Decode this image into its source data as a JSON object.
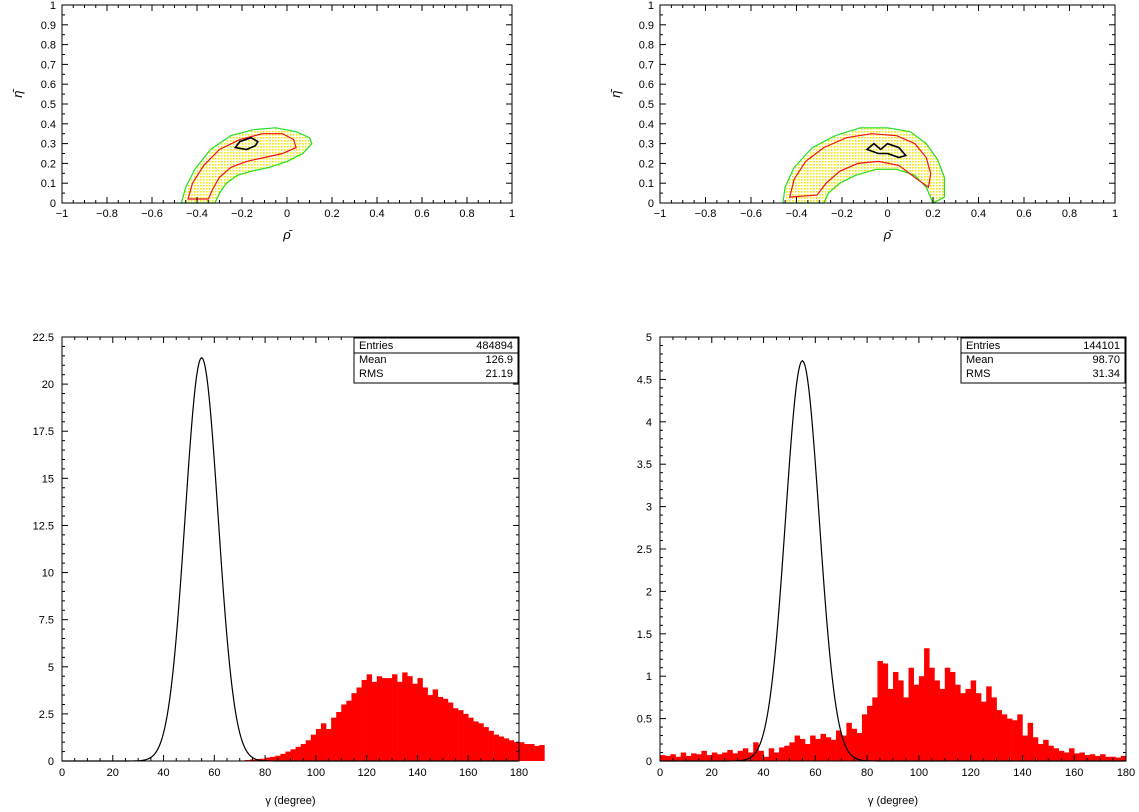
{
  "chart_data": [
    {
      "type": "heatmap",
      "xlabel": "ρ̄",
      "ylabel": "η̄",
      "xlim": [
        -1,
        1
      ],
      "ylim": [
        0,
        1
      ],
      "xticks": [
        "−1",
        "−0.8",
        "−0.6",
        "−0.4",
        "−0.2",
        "0",
        "0.2",
        "0.4",
        "0.6",
        "0.8",
        "1"
      ],
      "yticks": [
        "0",
        "0.1",
        "0.2",
        "0.3",
        "0.4",
        "0.5",
        "0.6",
        "0.7",
        "0.8",
        "0.9",
        "1"
      ],
      "contours": {
        "green": [
          [
            -0.47,
            0
          ],
          [
            -0.45,
            0.08
          ],
          [
            -0.41,
            0.17
          ],
          [
            -0.34,
            0.27
          ],
          [
            -0.25,
            0.34
          ],
          [
            -0.15,
            0.37
          ],
          [
            -0.05,
            0.38
          ],
          [
            0.04,
            0.36
          ],
          [
            0.1,
            0.33
          ],
          [
            0.11,
            0.3
          ],
          [
            0.07,
            0.25
          ],
          [
            0.0,
            0.21
          ],
          [
            -0.08,
            0.18
          ],
          [
            -0.16,
            0.16
          ],
          [
            -0.22,
            0.14
          ],
          [
            -0.27,
            0.1
          ],
          [
            -0.3,
            0.05
          ],
          [
            -0.32,
            0
          ],
          [
            -0.47,
            0
          ]
        ],
        "red": [
          [
            -0.44,
            0.02
          ],
          [
            -0.42,
            0.1
          ],
          [
            -0.37,
            0.19
          ],
          [
            -0.3,
            0.27
          ],
          [
            -0.21,
            0.32
          ],
          [
            -0.11,
            0.35
          ],
          [
            -0.02,
            0.35
          ],
          [
            0.03,
            0.32
          ],
          [
            0.04,
            0.28
          ],
          [
            -0.02,
            0.25
          ],
          [
            -0.1,
            0.23
          ],
          [
            -0.18,
            0.21
          ],
          [
            -0.25,
            0.18
          ],
          [
            -0.3,
            0.13
          ],
          [
            -0.33,
            0.07
          ],
          [
            -0.35,
            0.02
          ],
          [
            -0.44,
            0.02
          ]
        ],
        "black": [
          [
            -0.23,
            0.28
          ],
          [
            -0.21,
            0.31
          ],
          [
            -0.16,
            0.33
          ],
          [
            -0.13,
            0.31
          ],
          [
            -0.14,
            0.29
          ],
          [
            -0.18,
            0.27
          ],
          [
            -0.23,
            0.28
          ]
        ]
      }
    },
    {
      "type": "heatmap",
      "xlabel": "ρ̄",
      "ylabel": "η̄",
      "xlim": [
        -1,
        1
      ],
      "ylim": [
        0,
        1
      ],
      "xticks": [
        "−1",
        "−0.8",
        "−0.6",
        "−0.4",
        "−0.2",
        "0",
        "0.2",
        "0.4",
        "0.6",
        "0.8",
        "1"
      ],
      "yticks": [
        "0",
        "0.1",
        "0.2",
        "0.3",
        "0.4",
        "0.5",
        "0.6",
        "0.7",
        "0.8",
        "0.9",
        "1"
      ],
      "contours": {
        "green": [
          [
            -0.46,
            0
          ],
          [
            -0.45,
            0.08
          ],
          [
            -0.41,
            0.18
          ],
          [
            -0.33,
            0.28
          ],
          [
            -0.23,
            0.34
          ],
          [
            -0.12,
            0.38
          ],
          [
            0.0,
            0.38
          ],
          [
            0.1,
            0.36
          ],
          [
            0.17,
            0.3
          ],
          [
            0.22,
            0.22
          ],
          [
            0.25,
            0.13
          ],
          [
            0.25,
            0.03
          ],
          [
            0.2,
            0.0
          ],
          [
            0.17,
            0.08
          ],
          [
            0.12,
            0.14
          ],
          [
            0.04,
            0.17
          ],
          [
            -0.05,
            0.17
          ],
          [
            -0.14,
            0.14
          ],
          [
            -0.21,
            0.1
          ],
          [
            -0.26,
            0.05
          ],
          [
            -0.28,
            0
          ],
          [
            -0.46,
            0
          ]
        ],
        "red": [
          [
            -0.43,
            0.03
          ],
          [
            -0.41,
            0.12
          ],
          [
            -0.36,
            0.21
          ],
          [
            -0.28,
            0.28
          ],
          [
            -0.18,
            0.33
          ],
          [
            -0.07,
            0.35
          ],
          [
            0.04,
            0.34
          ],
          [
            0.12,
            0.3
          ],
          [
            0.17,
            0.23
          ],
          [
            0.19,
            0.15
          ],
          [
            0.18,
            0.08
          ],
          [
            0.13,
            0.12
          ],
          [
            0.05,
            0.19
          ],
          [
            -0.04,
            0.21
          ],
          [
            -0.13,
            0.2
          ],
          [
            -0.21,
            0.16
          ],
          [
            -0.27,
            0.1
          ],
          [
            -0.31,
            0.04
          ],
          [
            -0.43,
            0.03
          ]
        ],
        "black": [
          [
            -0.09,
            0.27
          ],
          [
            -0.06,
            0.3
          ],
          [
            -0.03,
            0.27
          ],
          [
            0.0,
            0.3
          ],
          [
            0.05,
            0.28
          ],
          [
            0.08,
            0.24
          ],
          [
            0.05,
            0.23
          ],
          [
            0.0,
            0.25
          ],
          [
            -0.04,
            0.25
          ],
          [
            -0.09,
            0.27
          ]
        ]
      }
    },
    {
      "type": "bar",
      "xlabel": "γ (degree)",
      "ylabel": "",
      "xlim": [
        0,
        180
      ],
      "ylim": [
        0,
        22.5
      ],
      "xticks": [
        "0",
        "20",
        "40",
        "60",
        "80",
        "100",
        "120",
        "140",
        "160",
        "180"
      ],
      "yticks": [
        "0",
        "2.5",
        "5",
        "7.5",
        "10",
        "12.5",
        "15",
        "17.5",
        "20",
        "22.5"
      ],
      "stats": {
        "entries_label": "Entries",
        "entries": "484894",
        "mean_label": "Mean",
        "mean": "126.9",
        "rms_label": "RMS",
        "rms": "21.19"
      },
      "curve": {
        "peak_x": 55,
        "peak_y": 21.4,
        "sigma": 6.5
      },
      "bin_start": 70,
      "bin_width": 2,
      "values": [
        0.03,
        0.05,
        0.08,
        0.1,
        0.12,
        0.18,
        0.22,
        0.28,
        0.38,
        0.5,
        0.62,
        0.75,
        0.9,
        1.1,
        1.4,
        1.7,
        2.0,
        1.7,
        2.3,
        2.6,
        3.0,
        3.2,
        3.6,
        3.9,
        4.3,
        4.6,
        4.2,
        4.5,
        4.4,
        4.4,
        4.6,
        4.2,
        4.7,
        4.5,
        4.1,
        4.4,
        3.9,
        3.5,
        3.8,
        3.4,
        3.3,
        3.1,
        2.8,
        2.7,
        2.5,
        2.3,
        2.1,
        2.0,
        1.8,
        1.6,
        1.4,
        1.3,
        1.2,
        1.1,
        1.0,
        1.0,
        0.9,
        0.9,
        0.8,
        0.85
      ]
    },
    {
      "type": "bar",
      "xlabel": "γ (degree)",
      "ylabel": "",
      "xlim": [
        0,
        180
      ],
      "ylim": [
        0,
        5
      ],
      "xticks": [
        "0",
        "20",
        "40",
        "60",
        "80",
        "100",
        "120",
        "140",
        "160",
        "180"
      ],
      "yticks": [
        "0",
        "0.5",
        "1",
        "1.5",
        "2",
        "2.5",
        "3",
        "3.5",
        "4",
        "4.5",
        "5"
      ],
      "stats": {
        "entries_label": "Entries",
        "entries": "144101",
        "mean_label": "Mean",
        "mean": "98.70",
        "rms_label": "RMS",
        "rms": "31.34"
      },
      "curve": {
        "peak_x": 55,
        "peak_y": 4.72,
        "sigma": 6.5
      },
      "bin_start": 0,
      "bin_width": 2,
      "values": [
        0.07,
        0.06,
        0.08,
        0.05,
        0.1,
        0.06,
        0.09,
        0.08,
        0.12,
        0.07,
        0.1,
        0.08,
        0.1,
        0.13,
        0.09,
        0.12,
        0.15,
        0.1,
        0.22,
        0.12,
        0.05,
        0.15,
        0.1,
        0.16,
        0.18,
        0.22,
        0.3,
        0.26,
        0.2,
        0.3,
        0.26,
        0.32,
        0.28,
        0.25,
        0.36,
        0.3,
        0.45,
        0.38,
        0.33,
        0.55,
        0.65,
        0.75,
        1.18,
        1.15,
        0.85,
        1.05,
        0.95,
        0.75,
        1.1,
        0.9,
        1.0,
        1.33,
        1.1,
        0.95,
        0.85,
        1.1,
        1.05,
        0.9,
        0.8,
        0.85,
        0.95,
        0.8,
        0.7,
        0.88,
        0.75,
        0.6,
        0.55,
        0.5,
        0.48,
        0.55,
        0.3,
        0.45,
        0.28,
        0.2,
        0.25,
        0.18,
        0.15,
        0.12,
        0.1,
        0.15,
        0.09,
        0.1,
        0.07,
        0.08,
        0.06,
        0.08,
        0.05,
        0.05,
        0.04,
        0.06
      ]
    }
  ]
}
